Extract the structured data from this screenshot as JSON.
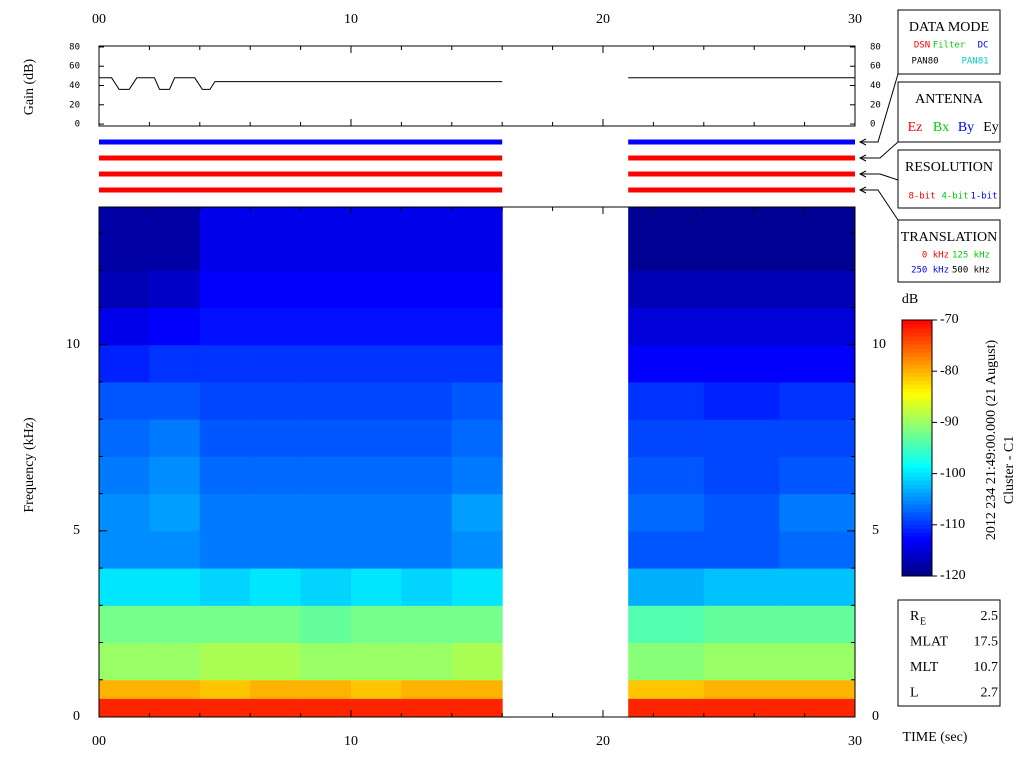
{
  "chart_data": [
    {
      "type": "line",
      "y_label": "Gain (dB)",
      "x": [
        0,
        0.5,
        0.8,
        1.2,
        1.5,
        2.2,
        2.4,
        2.8,
        3.0,
        3.8,
        4.1,
        4.4,
        4.6,
        16,
        16.5,
        21,
        30
      ],
      "series": [
        {
          "color": "#000000",
          "values": [
            48,
            48,
            36,
            36,
            48,
            48,
            36,
            36,
            48,
            48,
            36,
            36,
            44,
            44,
            null,
            48,
            48
          ]
        }
      ],
      "xlim": [
        0,
        30
      ],
      "xticks": [
        {
          "value": 0,
          "label": "00"
        },
        10,
        20,
        30
      ],
      "xminorticks": [
        2,
        4,
        6,
        8,
        12,
        14,
        16,
        18,
        22,
        24,
        26,
        28
      ],
      "ylim": [
        -2,
        81
      ],
      "yticks": [
        0,
        20,
        40,
        60,
        80
      ]
    },
    {
      "type": "status",
      "xlim": [
        0,
        30
      ],
      "bars": [
        {
          "color": "#0000ff",
          "segments": [
            [
              0,
              16
            ],
            [
              21,
              30
            ]
          ]
        },
        {
          "color": "#ff0000",
          "segments": [
            [
              0,
              16
            ],
            [
              21,
              30
            ]
          ]
        },
        {
          "color": "#ff0000",
          "segments": [
            [
              0,
              16
            ],
            [
              21,
              30
            ]
          ]
        },
        {
          "color": "#ff0000",
          "segments": [
            [
              0,
              16
            ],
            [
              21,
              30
            ]
          ]
        }
      ]
    },
    {
      "type": "heatmap",
      "x_label": "TIME (sec)",
      "y_label": "Frequency (kHz)",
      "xlim": [
        0,
        30
      ],
      "xticks": [
        {
          "value": 0,
          "label": "00"
        },
        10,
        20,
        30
      ],
      "xminorticks": [
        2,
        4,
        6,
        8,
        12,
        14,
        16,
        18,
        22,
        24,
        26,
        28
      ],
      "ylim": [
        0,
        13.7
      ],
      "yticks": [
        0,
        5,
        10
      ],
      "yminorticks": [
        1,
        2,
        3,
        4,
        6,
        7,
        8,
        9,
        11,
        12,
        13
      ],
      "x_edges": [
        0,
        2,
        4,
        6,
        8,
        10,
        12,
        14,
        16,
        21,
        24,
        27,
        30
      ],
      "y_edges": [
        0,
        0.5,
        1,
        2,
        3,
        4,
        5,
        6,
        7,
        8,
        9,
        10,
        11,
        12,
        13.7
      ],
      "z": [
        [
          -72,
          -72,
          -72,
          -72,
          -72,
          -72,
          -72,
          -72,
          null,
          -72,
          -72,
          -72
        ],
        [
          -80,
          -80,
          -81,
          -80,
          -80,
          -81,
          -80,
          -80,
          null,
          -81,
          -80,
          -80
        ],
        [
          -90,
          -90,
          -89,
          -89,
          -90,
          -90,
          -90,
          -89,
          null,
          -91,
          -90,
          -90
        ],
        [
          -92,
          -92,
          -92,
          -92,
          -93,
          -92,
          -92,
          -92,
          null,
          -94,
          -93,
          -93
        ],
        [
          -100,
          -100,
          -101,
          -100,
          -101,
          -100,
          -101,
          -100,
          null,
          -103,
          -102,
          -102
        ],
        [
          -105,
          -105,
          -106,
          -106,
          -106,
          -106,
          -106,
          -105,
          null,
          -108,
          -108,
          -107
        ],
        [
          -105,
          -104,
          -106,
          -106,
          -106,
          -106,
          -106,
          -104,
          null,
          -107,
          -108,
          -106
        ],
        [
          -106,
          -105,
          -107,
          -107,
          -107,
          -107,
          -107,
          -106,
          null,
          -108,
          -109,
          -108
        ],
        [
          -107,
          -106,
          -108,
          -108,
          -108,
          -108,
          -108,
          -107,
          null,
          -109,
          -109,
          -109
        ],
        [
          -108,
          -108,
          -109,
          -109,
          -109,
          -109,
          -109,
          -108,
          null,
          -110,
          -111,
          -110
        ],
        [
          -111,
          -110,
          -110,
          -110,
          -110,
          -110,
          -110,
          -110,
          null,
          -113,
          -113,
          -113
        ],
        [
          -114,
          -113,
          -112,
          -112,
          -112,
          -112,
          -112,
          -112,
          null,
          -115,
          -115,
          -115
        ],
        [
          -117,
          -116,
          -113,
          -113,
          -113,
          -113,
          -113,
          -113,
          null,
          -117,
          -117,
          -117
        ],
        [
          -118,
          -118,
          -114,
          -114,
          -114,
          -114,
          -114,
          -114,
          null,
          -119,
          -119,
          -119
        ]
      ],
      "colormap": [
        "#000080",
        "#0000ff",
        "#0080ff",
        "#00ffff",
        "#80ff80",
        "#ffff00",
        "#ff8000",
        "#ff0000"
      ],
      "colorbar": {
        "label": "dB",
        "lim": [
          -120,
          -70
        ],
        "ticks": [
          -120,
          -110,
          -100,
          -90,
          -80,
          -70
        ]
      }
    }
  ],
  "panels": [
    {
      "title": "DATA MODE",
      "items": [
        {
          "text": "DSN",
          "color": "#ff0000"
        },
        {
          "text": "Filter",
          "color": "#00cc00"
        },
        {
          "text": "DC",
          "color": "#0000ff"
        },
        {
          "text": "PAN80",
          "color": "#000000"
        },
        {
          "text": "PAN81",
          "color": "#00cccc"
        }
      ]
    },
    {
      "title": "ANTENNA",
      "items": [
        {
          "text": "Ez",
          "color": "#ff0000"
        },
        {
          "text": "Bx",
          "color": "#00cc00"
        },
        {
          "text": "By",
          "color": "#0000ff"
        },
        {
          "text": "Ey",
          "color": "#000000"
        }
      ]
    },
    {
      "title": "RESOLUTION",
      "items": [
        {
          "text": "8-bit",
          "color": "#ff0000"
        },
        {
          "text": "4-bit",
          "color": "#00cc00"
        },
        {
          "text": "1-bit",
          "color": "#0000ff"
        }
      ]
    },
    {
      "title": "TRANSLATION",
      "items": [
        {
          "text": "0 kHz",
          "color": "#ff0000"
        },
        {
          "text": "125 kHz",
          "color": "#00cc00"
        },
        {
          "text": "250 kHz",
          "color": "#0000ff"
        },
        {
          "text": "500 kHz",
          "color": "#000000"
        }
      ]
    }
  ],
  "timestamp": "2012 234 21:49:00.000 (21 August)",
  "spacecraft": "Cluster - C1",
  "info": [
    {
      "label": "R",
      "sub": "E",
      "value": 2.5
    },
    {
      "label": "MLAT",
      "value": 17.5
    },
    {
      "label": "MLT",
      "value": 10.7
    },
    {
      "label": "L",
      "value": 2.7
    }
  ]
}
